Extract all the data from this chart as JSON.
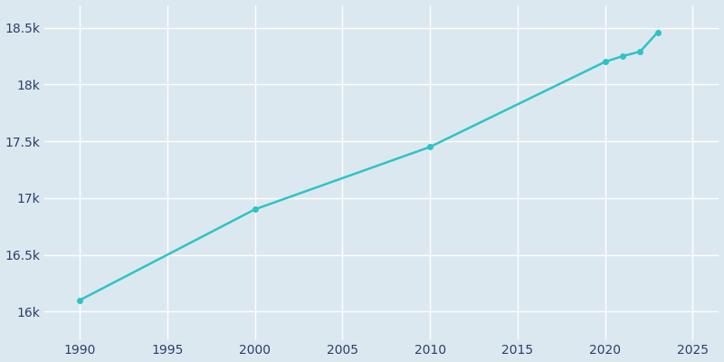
{
  "years": [
    1990,
    2000,
    2010,
    2020,
    2021,
    2022,
    2023
  ],
  "population": [
    16100,
    16900,
    17450,
    18200,
    18250,
    18290,
    18460
  ],
  "line_color": "#2ec4c4",
  "marker_color": "#2ec4c4",
  "fig_bg_color": "#dce8f0",
  "plot_bg_color": "#dce8f0",
  "grid_color": "#ffffff",
  "text_color": "#2c3e6b",
  "xlim": [
    1988,
    2026.5
  ],
  "ylim": [
    15750,
    18700
  ],
  "xticks": [
    1990,
    1995,
    2000,
    2005,
    2010,
    2015,
    2020,
    2025
  ],
  "ytick_values": [
    16000,
    16500,
    17000,
    17500,
    18000,
    18500
  ],
  "ytick_labels": [
    "16k",
    "16.5k",
    "17k",
    "17.5k",
    "18k",
    "18.5k"
  ],
  "linewidth": 1.8,
  "marker_size": 4
}
